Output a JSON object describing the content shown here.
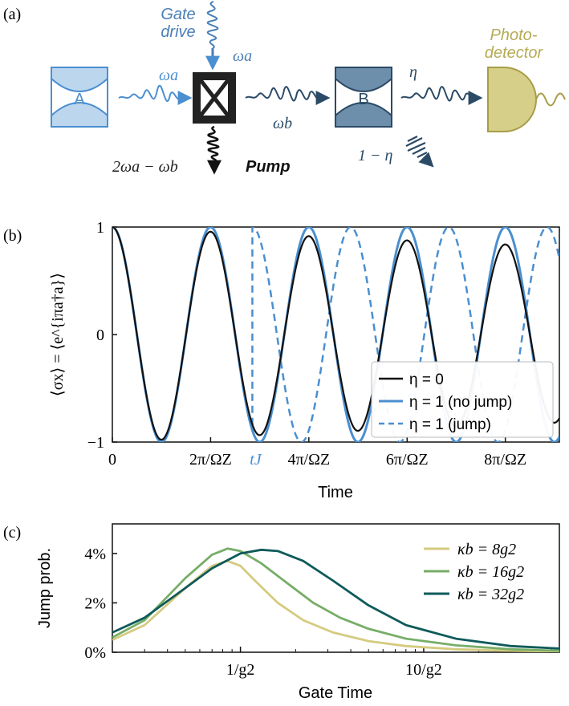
{
  "panel_a": {
    "panel_label": "(a)",
    "gate_drive_label_1": "Gate",
    "gate_drive_label_2": "drive",
    "gate_drive_freq": "ωa",
    "cavity_a_label": "A",
    "input_freq": "ωa",
    "output_freq": "ωb",
    "pump_freq": "2ωa − ωb",
    "pump_label": "Pump",
    "cavity_b_label": "B",
    "eta_label": "η",
    "one_minus_eta_label": "1 − η",
    "detector_label_1": "Photo-",
    "detector_label_2": "detector",
    "colors": {
      "blue": "#4a8fd0",
      "dark": "#2b4a66",
      "cavity_b": "#6e8fab",
      "detector": "#c8bf72"
    }
  },
  "chart_data": [
    {
      "type": "line",
      "panel_label": "(b)",
      "ylabel": "⟨σx⟩ = ⟨e^{iπa†a}⟩",
      "xlabel": "Time",
      "ylim": [
        -1,
        1
      ],
      "yticks": [
        "−1",
        "0",
        "1"
      ],
      "xticks": [
        "0",
        "2π/ΩZ",
        "4π/ΩZ",
        "6π/ΩZ",
        "8π/ΩZ"
      ],
      "xtick_values": [
        0,
        2,
        4,
        6,
        8
      ],
      "xlim": [
        0,
        9.1
      ],
      "annotation": "tJ",
      "annotation_x": 2.85,
      "legend_position": "lower-right",
      "series": [
        {
          "name": "η = 0",
          "color": "#111111",
          "style": "solid",
          "decay": 0.022
        },
        {
          "name": "η = 1 (no jump)",
          "color": "#4a8fd0",
          "style": "solid",
          "decay": 0
        },
        {
          "name": "η = 1 (jump)",
          "color": "#4a8fd0",
          "style": "dashed",
          "decay": 0
        }
      ]
    },
    {
      "type": "line",
      "panel_label": "(c)",
      "ylabel": "Jump prob.",
      "xlabel": "Gate Time",
      "xscale": "log",
      "xlim": [
        0.2,
        55
      ],
      "ylim": [
        0,
        5.2
      ],
      "yticks": [
        "0%",
        "2%",
        "4%"
      ],
      "ytick_values": [
        0,
        2,
        4
      ],
      "xticks": [
        "1/g2",
        "10/g2"
      ],
      "xtick_values": [
        1,
        10
      ],
      "legend_position": "top-right",
      "series": [
        {
          "name": "κb = 8g2",
          "color": "#d4cb80",
          "x": [
            0.2,
            0.3,
            0.5,
            0.7,
            0.85,
            1.0,
            1.2,
            1.6,
            2.2,
            3.2,
            5,
            8,
            15,
            30,
            55
          ],
          "y": [
            0.5,
            1.1,
            2.6,
            3.5,
            3.7,
            3.5,
            2.9,
            2.0,
            1.3,
            0.8,
            0.45,
            0.25,
            0.12,
            0.06,
            0.03
          ]
        },
        {
          "name": "κb = 16g2",
          "color": "#77ad67",
          "x": [
            0.2,
            0.3,
            0.5,
            0.7,
            0.85,
            1.0,
            1.3,
            1.8,
            2.5,
            3.5,
            5,
            8,
            15,
            30,
            55
          ],
          "y": [
            0.6,
            1.3,
            3.0,
            3.95,
            4.2,
            4.1,
            3.6,
            2.8,
            2.0,
            1.4,
            0.95,
            0.55,
            0.28,
            0.12,
            0.06
          ]
        },
        {
          "name": "κb = 32g2",
          "color": "#0f5a5a",
          "x": [
            0.2,
            0.3,
            0.5,
            0.7,
            1.0,
            1.3,
            1.6,
            2.2,
            3.2,
            5,
            8,
            15,
            30,
            55
          ],
          "y": [
            0.8,
            1.4,
            2.6,
            3.4,
            4.0,
            4.15,
            4.1,
            3.7,
            2.9,
            1.9,
            1.1,
            0.55,
            0.25,
            0.15
          ]
        }
      ]
    }
  ]
}
